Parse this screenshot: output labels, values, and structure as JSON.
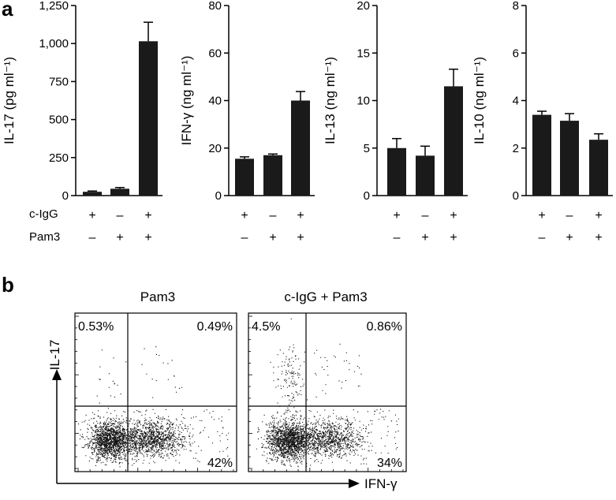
{
  "panel_a": {
    "label": "a"
  },
  "panel_b": {
    "label": "b"
  },
  "conditions": {
    "row1_label": "c-IgG",
    "row2_label": "Pam3",
    "cigg": [
      "+",
      "–",
      "+"
    ],
    "pam3": [
      "–",
      "+",
      "+"
    ]
  },
  "chart_data": [
    {
      "type": "bar",
      "ylabel": "IL-17 (pg ml⁻¹)",
      "ylim": [
        0,
        1250
      ],
      "yticks": [
        0,
        250,
        500,
        750,
        1000,
        1250
      ],
      "ytick_labels": [
        "0",
        "250",
        "500",
        "750",
        "1,000",
        "1,250"
      ],
      "categories": [
        "c-IgG + / Pam3 –",
        "c-IgG – / Pam3 +",
        "c-IgG + / Pam3 +"
      ],
      "values": [
        25,
        45,
        1015
      ],
      "errors": [
        5,
        8,
        125
      ]
    },
    {
      "type": "bar",
      "ylabel": "IFN-γ (ng ml⁻¹)",
      "ylim": [
        0,
        80
      ],
      "yticks": [
        0,
        20,
        40,
        60,
        80
      ],
      "ytick_labels": [
        "0",
        "20",
        "40",
        "60",
        "80"
      ],
      "categories": [
        "c-IgG + / Pam3 –",
        "c-IgG – / Pam3 +",
        "c-IgG + / Pam3 +"
      ],
      "values": [
        15.5,
        17,
        40
      ],
      "errors": [
        0.8,
        0.5,
        3.8
      ]
    },
    {
      "type": "bar",
      "ylabel": "IL-13 (ng ml⁻¹)",
      "ylim": [
        0,
        20
      ],
      "yticks": [
        0,
        5,
        10,
        15,
        20
      ],
      "ytick_labels": [
        "0",
        "5",
        "10",
        "15",
        "20"
      ],
      "categories": [
        "c-IgG + / Pam3 –",
        "c-IgG – / Pam3 +",
        "c-IgG + / Pam3 +"
      ],
      "values": [
        5,
        4.2,
        11.5
      ],
      "errors": [
        1.0,
        1.0,
        1.8
      ]
    },
    {
      "type": "bar",
      "ylabel": "IL-10 (ng ml⁻¹)",
      "ylim": [
        0,
        8
      ],
      "yticks": [
        0,
        2,
        4,
        6,
        8
      ],
      "ytick_labels": [
        "0",
        "2",
        "4",
        "6",
        "8"
      ],
      "categories": [
        "c-IgG + / Pam3 –",
        "c-IgG – / Pam3 +",
        "c-IgG + / Pam3 +"
      ],
      "values": [
        3.4,
        3.15,
        2.35
      ],
      "errors": [
        0.15,
        0.3,
        0.25
      ]
    },
    {
      "type": "scatter",
      "title": "Pam3",
      "xlabel": "IFN-γ",
      "ylabel": "IL-17",
      "quadrant_labels": {
        "upper_left": "0.53%",
        "upper_right": "0.49%",
        "lower_right": "42%"
      },
      "quadrant_percent": {
        "upper_left": 0.53,
        "upper_right": 0.49,
        "lower_right": 42
      }
    },
    {
      "type": "scatter",
      "title": "c-IgG + Pam3",
      "xlabel": "IFN-γ",
      "ylabel": "IL-17",
      "quadrant_labels": {
        "upper_left": "4.5%",
        "upper_right": "0.86%",
        "lower_right": "34%"
      },
      "quadrant_percent": {
        "upper_left": 4.5,
        "upper_right": 0.86,
        "lower_right": 34
      }
    }
  ]
}
